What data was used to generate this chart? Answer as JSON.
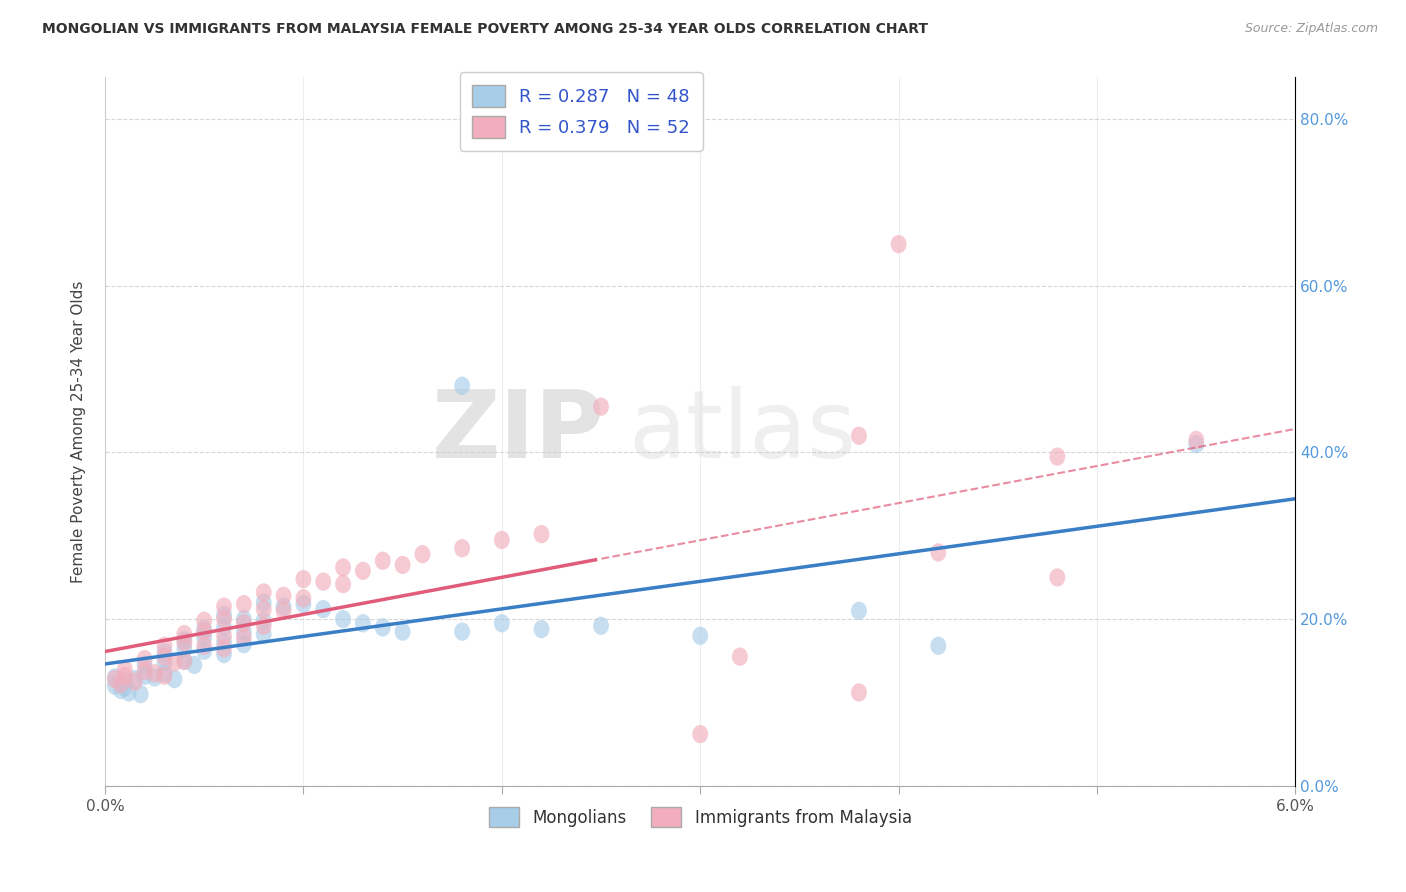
{
  "title": "MONGOLIAN VS IMMIGRANTS FROM MALAYSIA FEMALE POVERTY AMONG 25-34 YEAR OLDS CORRELATION CHART",
  "source": "Source: ZipAtlas.com",
  "ylabel": "Female Poverty Among 25-34 Year Olds",
  "legend1_label": "R = 0.287   N = 48",
  "legend2_label": "R = 0.379   N = 52",
  "legend_group1": "Mongolians",
  "legend_group2": "Immigrants from Malaysia",
  "color_blue": "#A8CDE8",
  "color_pink": "#F2AEBC",
  "color_blue_line": "#3A7EC6",
  "color_pink_line": "#E05C7A",
  "color_legend_text": "#3355CC",
  "mongolian_points": [
    [
      0.0005,
      0.13
    ],
    [
      0.001,
      0.125
    ],
    [
      0.0015,
      0.128
    ],
    [
      0.0005,
      0.12
    ],
    [
      0.001,
      0.118
    ],
    [
      0.0008,
      0.115
    ],
    [
      0.0012,
      0.112
    ],
    [
      0.0018,
      0.11
    ],
    [
      0.002,
      0.132
    ],
    [
      0.0025,
      0.13
    ],
    [
      0.003,
      0.135
    ],
    [
      0.0035,
      0.128
    ],
    [
      0.002,
      0.145
    ],
    [
      0.003,
      0.148
    ],
    [
      0.004,
      0.15
    ],
    [
      0.0045,
      0.145
    ],
    [
      0.003,
      0.16
    ],
    [
      0.004,
      0.165
    ],
    [
      0.005,
      0.162
    ],
    [
      0.006,
      0.158
    ],
    [
      0.004,
      0.175
    ],
    [
      0.005,
      0.178
    ],
    [
      0.006,
      0.172
    ],
    [
      0.007,
      0.17
    ],
    [
      0.005,
      0.188
    ],
    [
      0.006,
      0.19
    ],
    [
      0.007,
      0.185
    ],
    [
      0.008,
      0.182
    ],
    [
      0.006,
      0.205
    ],
    [
      0.007,
      0.2
    ],
    [
      0.008,
      0.198
    ],
    [
      0.008,
      0.22
    ],
    [
      0.009,
      0.215
    ],
    [
      0.01,
      0.218
    ],
    [
      0.011,
      0.212
    ],
    [
      0.012,
      0.2
    ],
    [
      0.013,
      0.195
    ],
    [
      0.014,
      0.19
    ],
    [
      0.015,
      0.185
    ],
    [
      0.018,
      0.185
    ],
    [
      0.02,
      0.195
    ],
    [
      0.022,
      0.188
    ],
    [
      0.025,
      0.192
    ],
    [
      0.03,
      0.18
    ],
    [
      0.018,
      0.48
    ],
    [
      0.038,
      0.21
    ],
    [
      0.042,
      0.168
    ],
    [
      0.055,
      0.41
    ]
  ],
  "malaysia_points": [
    [
      0.0005,
      0.128
    ],
    [
      0.001,
      0.132
    ],
    [
      0.0015,
      0.125
    ],
    [
      0.0008,
      0.122
    ],
    [
      0.001,
      0.14
    ],
    [
      0.002,
      0.138
    ],
    [
      0.0025,
      0.135
    ],
    [
      0.003,
      0.132
    ],
    [
      0.002,
      0.152
    ],
    [
      0.003,
      0.155
    ],
    [
      0.004,
      0.15
    ],
    [
      0.0035,
      0.148
    ],
    [
      0.003,
      0.168
    ],
    [
      0.004,
      0.172
    ],
    [
      0.005,
      0.168
    ],
    [
      0.006,
      0.165
    ],
    [
      0.004,
      0.182
    ],
    [
      0.005,
      0.185
    ],
    [
      0.006,
      0.18
    ],
    [
      0.007,
      0.178
    ],
    [
      0.005,
      0.198
    ],
    [
      0.006,
      0.2
    ],
    [
      0.007,
      0.195
    ],
    [
      0.008,
      0.192
    ],
    [
      0.006,
      0.215
    ],
    [
      0.007,
      0.218
    ],
    [
      0.008,
      0.212
    ],
    [
      0.009,
      0.21
    ],
    [
      0.008,
      0.232
    ],
    [
      0.009,
      0.228
    ],
    [
      0.01,
      0.225
    ],
    [
      0.01,
      0.248
    ],
    [
      0.011,
      0.245
    ],
    [
      0.012,
      0.242
    ],
    [
      0.012,
      0.262
    ],
    [
      0.013,
      0.258
    ],
    [
      0.014,
      0.27
    ],
    [
      0.015,
      0.265
    ],
    [
      0.016,
      0.278
    ],
    [
      0.018,
      0.285
    ],
    [
      0.02,
      0.295
    ],
    [
      0.022,
      0.302
    ],
    [
      0.025,
      0.455
    ],
    [
      0.032,
      0.155
    ],
    [
      0.038,
      0.112
    ],
    [
      0.042,
      0.28
    ],
    [
      0.038,
      0.42
    ],
    [
      0.048,
      0.25
    ],
    [
      0.03,
      0.062
    ],
    [
      0.048,
      0.395
    ],
    [
      0.055,
      0.415
    ],
    [
      0.04,
      0.65
    ]
  ],
  "x_min": 0.0,
  "x_max": 0.06,
  "y_min": 0.0,
  "y_max": 0.85,
  "x_ticks": [
    0.0,
    0.01,
    0.02,
    0.03,
    0.04,
    0.05,
    0.06
  ],
  "y_ticks": [
    0.0,
    0.2,
    0.4,
    0.6,
    0.8
  ]
}
